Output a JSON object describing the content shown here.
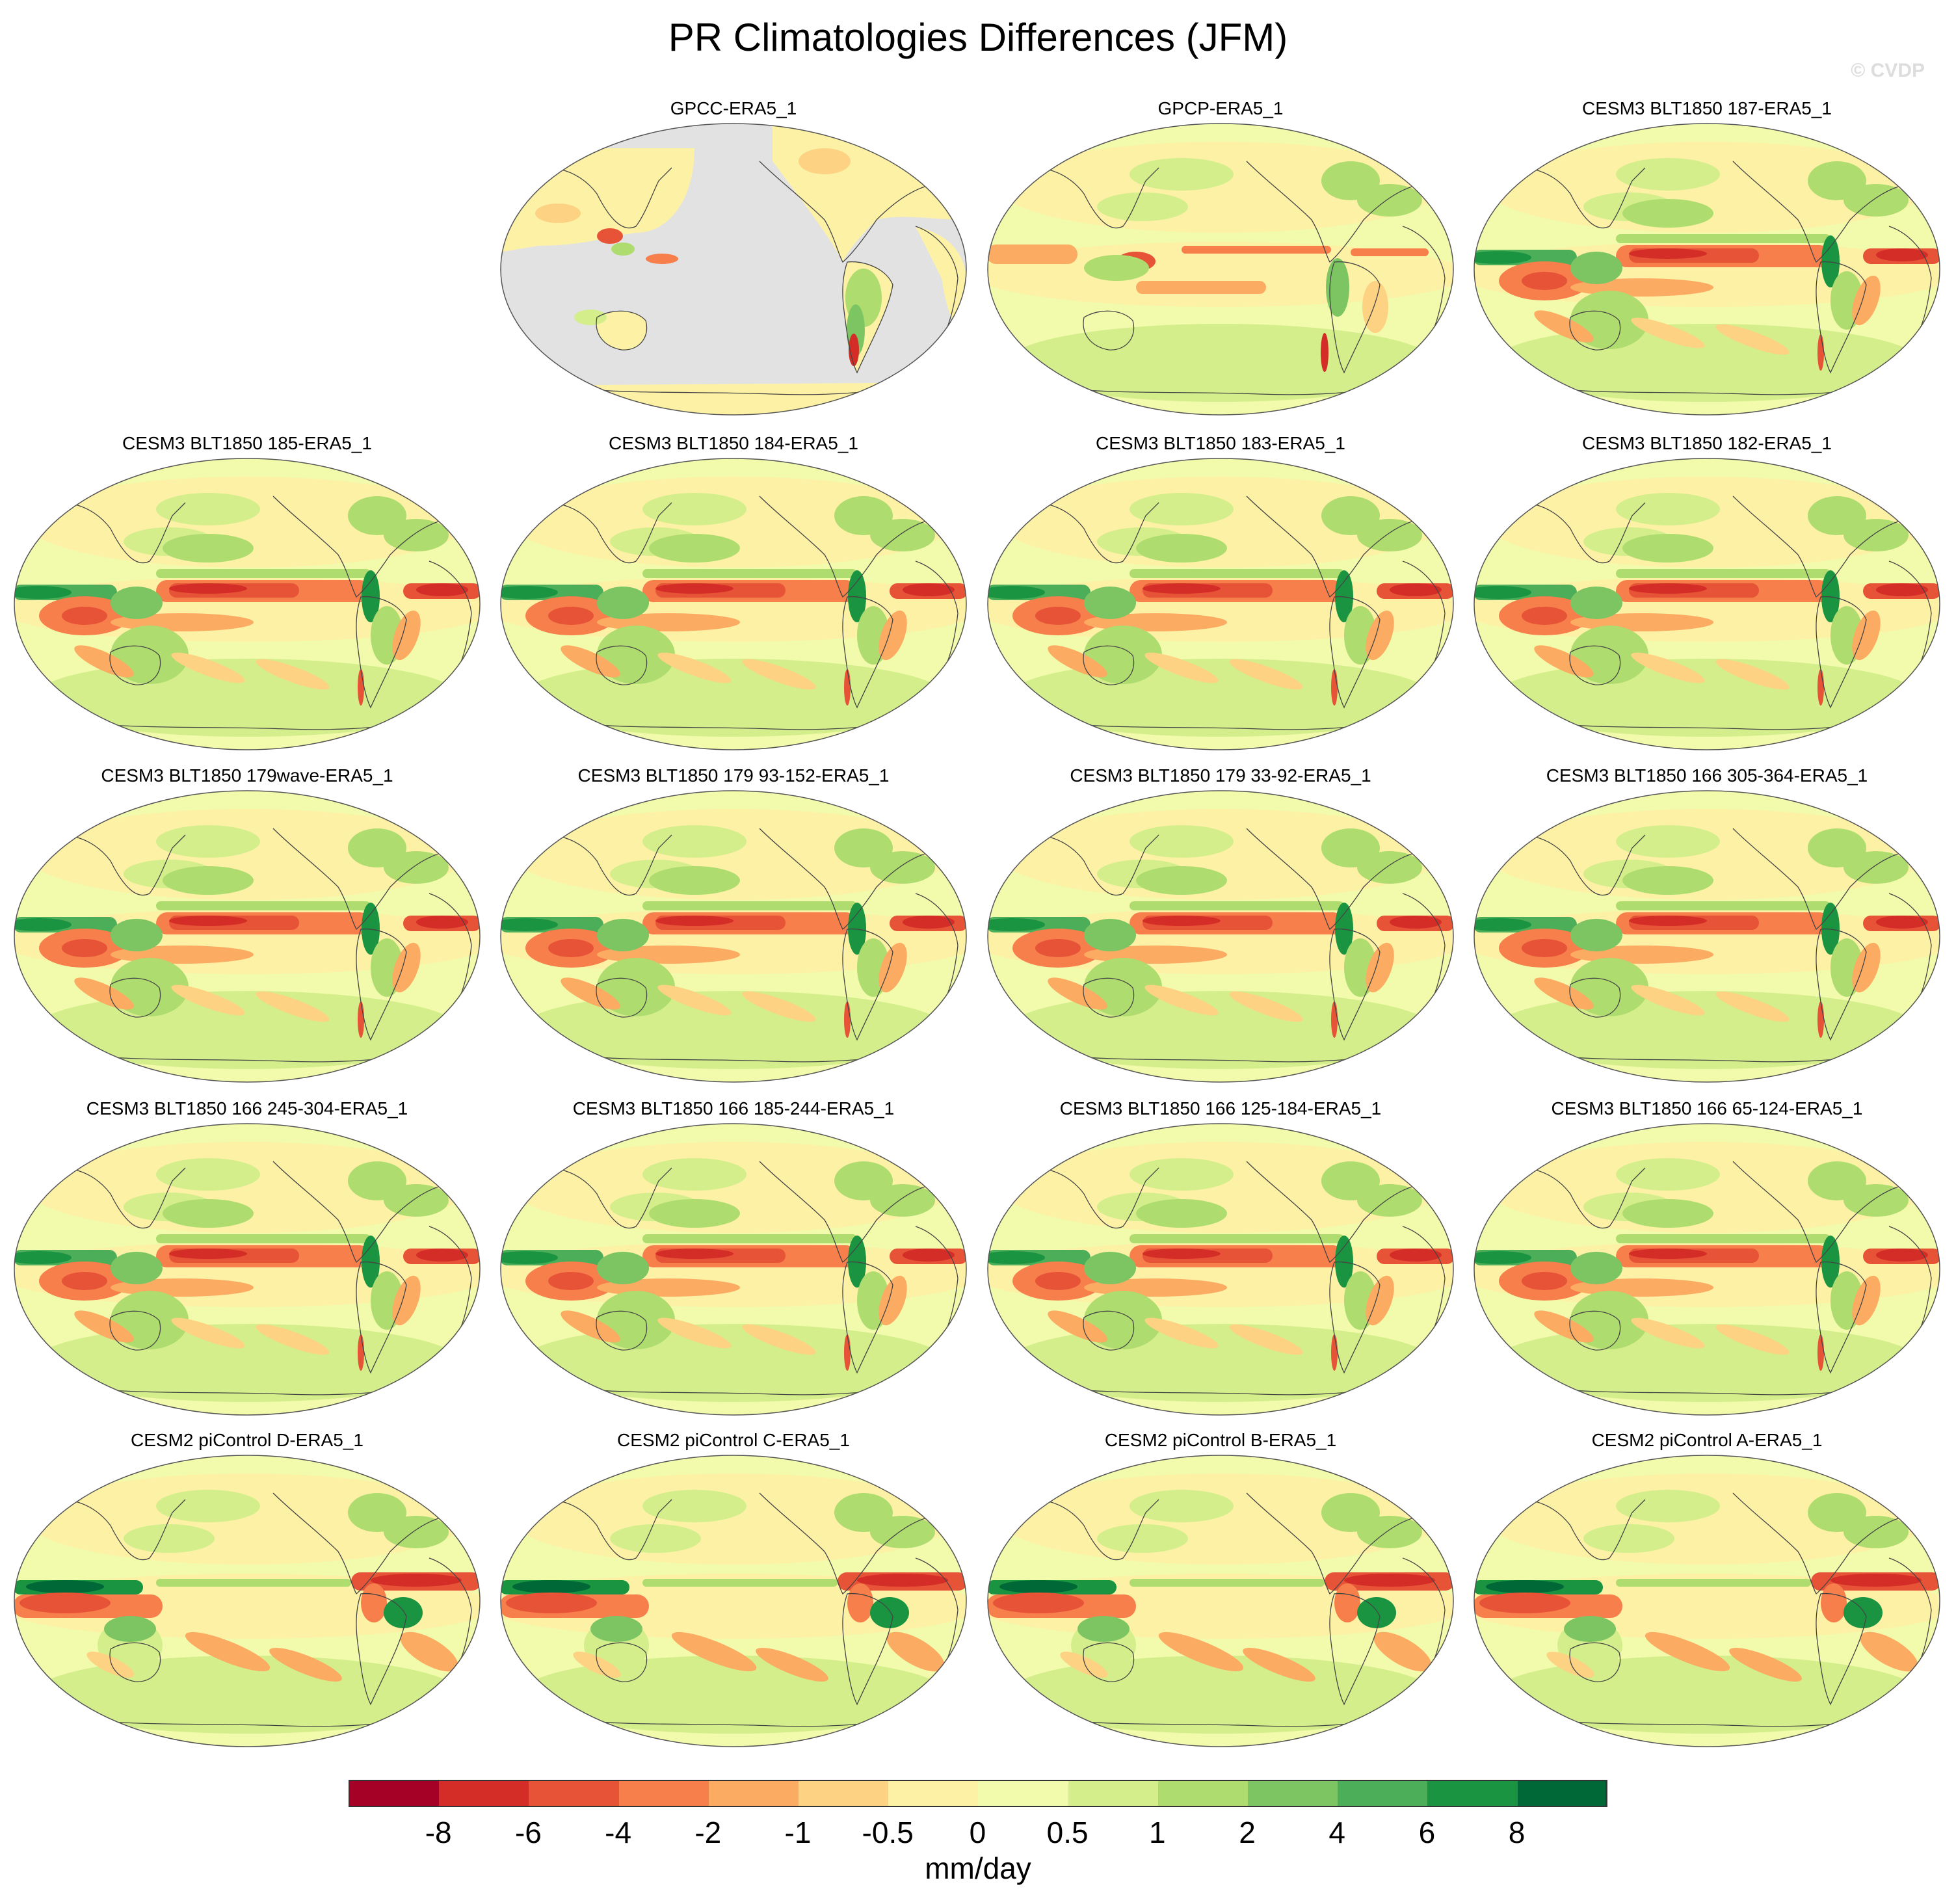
{
  "title": "PR Climatologies Differences (JFM)",
  "credit": "© CVDP",
  "panels": [
    {
      "label": "GPCC-ERA5_1",
      "variant": "land"
    },
    {
      "label": "GPCP-ERA5_1",
      "variant": "obs"
    },
    {
      "label": "CESM3 BLT1850 187-ERA5_1",
      "variant": "cesm3"
    },
    {
      "label": "CESM3 BLT1850 185-ERA5_1",
      "variant": "cesm3"
    },
    {
      "label": "CESM3 BLT1850 184-ERA5_1",
      "variant": "cesm3"
    },
    {
      "label": "CESM3 BLT1850 183-ERA5_1",
      "variant": "cesm3"
    },
    {
      "label": "CESM3 BLT1850 182-ERA5_1",
      "variant": "cesm3"
    },
    {
      "label": "CESM3 BLT1850 179wave-ERA5_1",
      "variant": "cesm3"
    },
    {
      "label": "CESM3 BLT1850 179 93-152-ERA5_1",
      "variant": "cesm3"
    },
    {
      "label": "CESM3 BLT1850 179 33-92-ERA5_1",
      "variant": "cesm3"
    },
    {
      "label": "CESM3 BLT1850 166 305-364-ERA5_1",
      "variant": "cesm3"
    },
    {
      "label": "CESM3 BLT1850 166 245-304-ERA5_1",
      "variant": "cesm3"
    },
    {
      "label": "CESM3 BLT1850 166 185-244-ERA5_1",
      "variant": "cesm3"
    },
    {
      "label": "CESM3 BLT1850 166 125-184-ERA5_1",
      "variant": "cesm3"
    },
    {
      "label": "CESM3 BLT1850 166 65-124-ERA5_1",
      "variant": "cesm3"
    },
    {
      "label": "CESM2 piControl D-ERA5_1",
      "variant": "cesm2"
    },
    {
      "label": "CESM2 piControl C-ERA5_1",
      "variant": "cesm2"
    },
    {
      "label": "CESM2 piControl B-ERA5_1",
      "variant": "cesm2"
    },
    {
      "label": "CESM2 piControl A-ERA5_1",
      "variant": "cesm2"
    }
  ],
  "colorbar": {
    "colors": [
      "#a50026",
      "#d42d27",
      "#e75337",
      "#f67f4b",
      "#fcab63",
      "#fdd283",
      "#fdf1a6",
      "#f2faab",
      "#d3ee8b",
      "#aedc6f",
      "#7dc563",
      "#4dae5a",
      "#1a9441",
      "#006837"
    ],
    "tick_labels": [
      "-8",
      "-6",
      "-4",
      "-2",
      "-1",
      "-0.5",
      "0",
      "0.5",
      "1",
      "2",
      "4",
      "6",
      "8"
    ],
    "units": "mm/day"
  }
}
